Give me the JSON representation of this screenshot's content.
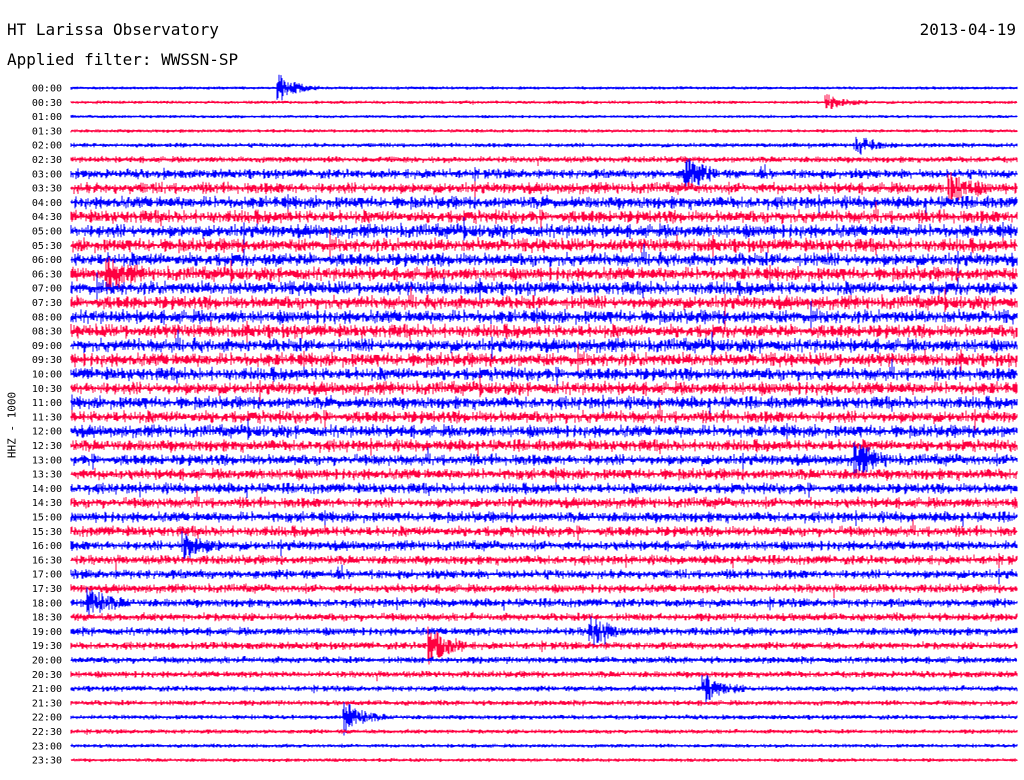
{
  "header": {
    "station": "HT Larissa Observatory",
    "date": "2013-04-19",
    "filter": "Applied filter: WWSSN-SP"
  },
  "chart_data": {
    "type": "line",
    "ylabel": "HHZ - 1000",
    "row_labels": [
      "00:00",
      "00:30",
      "01:00",
      "01:30",
      "02:00",
      "02:30",
      "03:00",
      "03:30",
      "04:00",
      "04:30",
      "05:00",
      "05:30",
      "06:00",
      "06:30",
      "07:00",
      "07:30",
      "08:00",
      "08:30",
      "09:00",
      "09:30",
      "10:00",
      "10:30",
      "11:00",
      "11:30",
      "12:00",
      "12:30",
      "13:00",
      "13:30",
      "14:00",
      "14:30",
      "15:00",
      "15:30",
      "16:00",
      "16:30",
      "17:00",
      "17:30",
      "18:00",
      "18:30",
      "19:00",
      "19:30",
      "20:00",
      "20:30",
      "21:00",
      "21:30",
      "22:00",
      "22:30",
      "23:00",
      "23:30"
    ],
    "trace_colors": [
      "#0000ff",
      "#ff0040"
    ],
    "noise_level": [
      0.08,
      0.1,
      0.08,
      0.12,
      0.2,
      0.35,
      0.6,
      0.75,
      0.85,
      0.9,
      0.95,
      0.95,
      0.95,
      0.95,
      0.95,
      0.95,
      0.95,
      0.95,
      0.95,
      0.95,
      0.9,
      0.9,
      0.85,
      0.85,
      0.85,
      0.8,
      0.75,
      0.75,
      0.7,
      0.7,
      0.7,
      0.7,
      0.65,
      0.6,
      0.6,
      0.55,
      0.55,
      0.5,
      0.5,
      0.45,
      0.4,
      0.38,
      0.3,
      0.28,
      0.22,
      0.2,
      0.15,
      0.14
    ],
    "events": [
      {
        "row": 0,
        "x_frac": 0.22,
        "amp": 1.0
      },
      {
        "row": 1,
        "x_frac": 0.8,
        "amp": 0.6
      },
      {
        "row": 4,
        "x_frac": 0.83,
        "amp": 0.8
      },
      {
        "row": 6,
        "x_frac": 0.65,
        "amp": 1.2
      },
      {
        "row": 7,
        "x_frac": 0.93,
        "amp": 1.0
      },
      {
        "row": 13,
        "x_frac": 0.04,
        "amp": 1.0
      },
      {
        "row": 26,
        "x_frac": 0.83,
        "amp": 1.2
      },
      {
        "row": 32,
        "x_frac": 0.12,
        "amp": 1.0
      },
      {
        "row": 36,
        "x_frac": 0.02,
        "amp": 1.0
      },
      {
        "row": 38,
        "x_frac": 0.55,
        "amp": 1.0
      },
      {
        "row": 39,
        "x_frac": 0.38,
        "amp": 1.5
      },
      {
        "row": 42,
        "x_frac": 0.67,
        "amp": 1.0
      },
      {
        "row": 44,
        "x_frac": 0.29,
        "amp": 1.2
      }
    ]
  }
}
